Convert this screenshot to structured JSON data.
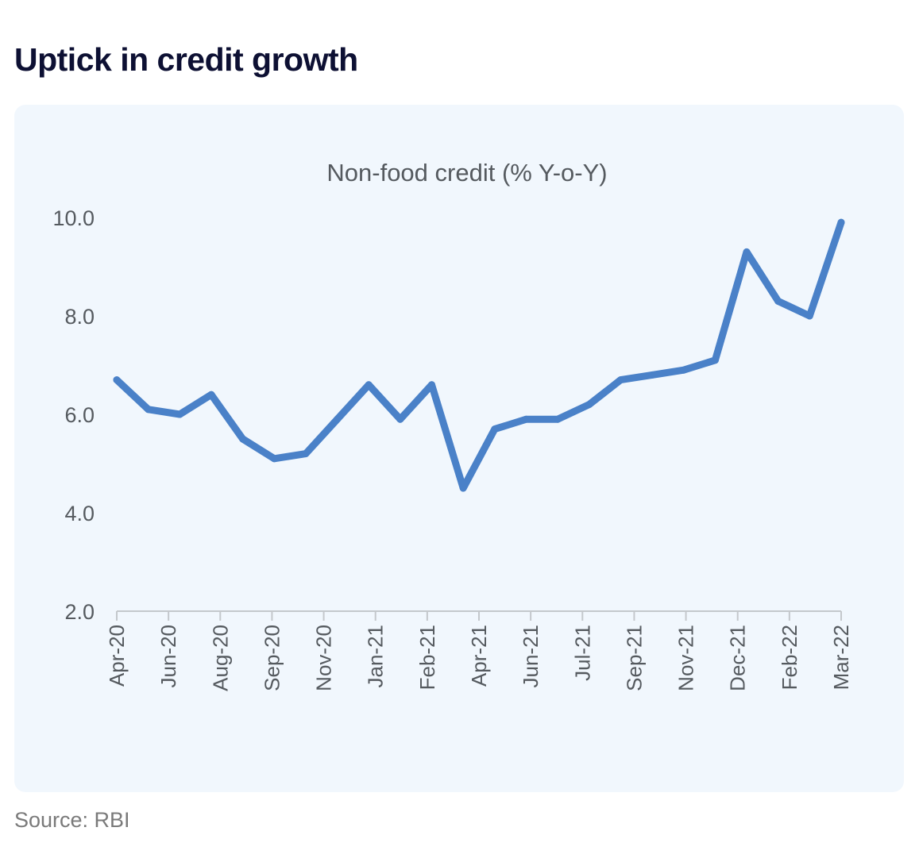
{
  "headline": "Uptick in credit growth",
  "source": "Source: RBI",
  "colors": {
    "line": "#4a81c8",
    "card": "#f1f7fd",
    "title": "#0d1033"
  },
  "chart_data": {
    "type": "line",
    "title": "Non-food credit (% Y-o-Y)",
    "xlabel": "",
    "ylabel": "",
    "ylim": [
      2,
      10
    ],
    "yticks": [
      2,
      4,
      6,
      8,
      10
    ],
    "ytick_labels": [
      "2.0",
      "4.0",
      "6.0",
      "8.0",
      "10.0"
    ],
    "xtick_labels": [
      "Apr-20",
      "Jun-20",
      "Aug-20",
      "Sep-20",
      "Nov-20",
      "Jan-21",
      "Feb-21",
      "Apr-21",
      "Jun-21",
      "Jul-21",
      "Sep-21",
      "Nov-21",
      "Dec-21",
      "Feb-22",
      "Mar-22"
    ],
    "series": [
      {
        "name": "Non-food credit",
        "values": [
          6.7,
          6.1,
          6.0,
          6.4,
          5.5,
          5.1,
          5.2,
          5.9,
          6.6,
          5.9,
          6.6,
          4.5,
          5.7,
          5.9,
          5.9,
          6.2,
          6.7,
          6.8,
          6.9,
          7.1,
          9.3,
          8.3,
          8.0,
          9.9
        ]
      }
    ]
  }
}
